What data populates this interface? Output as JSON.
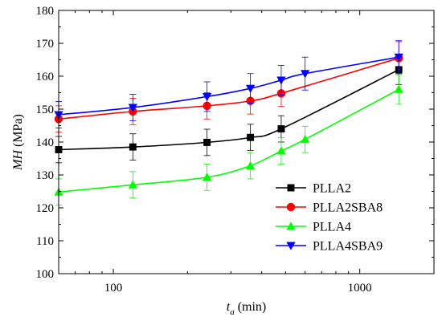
{
  "chart_data": {
    "type": "line",
    "xlabel_main": "t",
    "xlabel_sub": "a",
    "xlabel_unit": " (min)",
    "ylabel_main": "MH",
    "ylabel_unit": " (MPa)",
    "x_scale": "log",
    "xlim": [
      60,
      2000
    ],
    "ylim": [
      100,
      180
    ],
    "x_ticks": [
      100,
      1000
    ],
    "y_ticks": [
      100,
      110,
      120,
      130,
      140,
      150,
      160,
      170,
      180
    ],
    "legend_position": "bottom-right",
    "x": [
      60,
      120,
      240,
      360,
      480,
      600,
      1440
    ],
    "series": [
      {
        "name": "PLLA2",
        "color": "#000000",
        "marker": "square",
        "x": [
          60,
          120,
          240,
          360,
          480,
          1440
        ],
        "y": [
          137.7,
          138.5,
          139.9,
          141.4,
          144.0,
          162.0
        ],
        "err": [
          4.0,
          4.0,
          4.0,
          4.0,
          4.0,
          4.5
        ]
      },
      {
        "name": "PLLA2SBA8",
        "color": "#ff0000",
        "marker": "circle",
        "x": [
          60,
          120,
          240,
          360,
          480,
          1440
        ],
        "y": [
          147.0,
          149.3,
          151.0,
          152.5,
          154.8,
          165.5
        ],
        "err": [
          4.0,
          4.0,
          4.0,
          4.0,
          4.0,
          5.0
        ]
      },
      {
        "name": "PLLA4",
        "color": "#00ff00",
        "marker": "triangle-up",
        "x": [
          60,
          120,
          240,
          360,
          480,
          600,
          1440
        ],
        "y": [
          124.8,
          127.0,
          129.3,
          132.8,
          137.3,
          140.8,
          156.0
        ],
        "err": [
          4.0,
          4.0,
          4.0,
          4.0,
          4.0,
          4.0,
          4.5
        ]
      },
      {
        "name": "PLLA4SBA9",
        "color": "#0000ff",
        "marker": "triangle-down",
        "x": [
          60,
          120,
          240,
          360,
          480,
          600,
          1440
        ],
        "y": [
          148.3,
          150.5,
          153.8,
          156.3,
          158.8,
          160.8,
          165.8
        ],
        "err": [
          4.0,
          4.0,
          4.5,
          4.5,
          4.5,
          5.0,
          5.0
        ]
      }
    ]
  }
}
